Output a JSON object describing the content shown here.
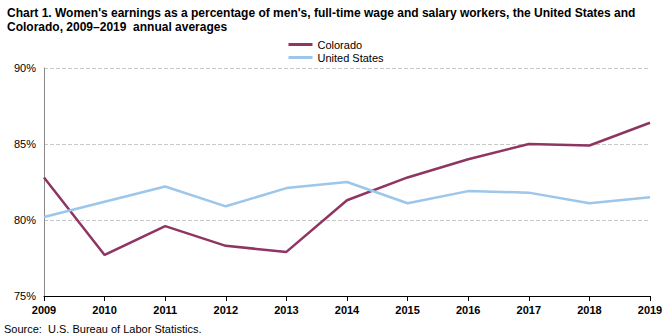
{
  "chart_data": {
    "type": "line",
    "title": "Chart 1. Women's earnings as a percentage of men's, full-time wage and salary workers, the United States and Colorado, 2009–2019  annual averages",
    "annotations": [
      "Source:  U.S. Bureau of Labor Statistics."
    ],
    "categories": [
      "2009",
      "2010",
      "2011",
      "2012",
      "2013",
      "2014",
      "2015",
      "2016",
      "2017",
      "2018",
      "2019"
    ],
    "series": [
      {
        "name": "Colorado",
        "color": "#8e3563",
        "values": [
          82.8,
          77.7,
          79.6,
          78.3,
          77.9,
          81.3,
          82.8,
          84.0,
          85.0,
          84.9,
          86.4
        ]
      },
      {
        "name": "United States",
        "color": "#9cc6ea",
        "values": [
          80.2,
          81.2,
          82.2,
          80.9,
          82.1,
          82.5,
          81.1,
          81.9,
          81.8,
          81.1,
          81.5
        ]
      }
    ],
    "ylim": [
      75,
      90
    ],
    "yticks": [
      {
        "value": 75,
        "label": "75%"
      },
      {
        "value": 80,
        "label": "80%"
      },
      {
        "value": 85,
        "label": "85%"
      },
      {
        "value": 90,
        "label": "90%"
      }
    ],
    "grid": true,
    "legend": "top"
  }
}
